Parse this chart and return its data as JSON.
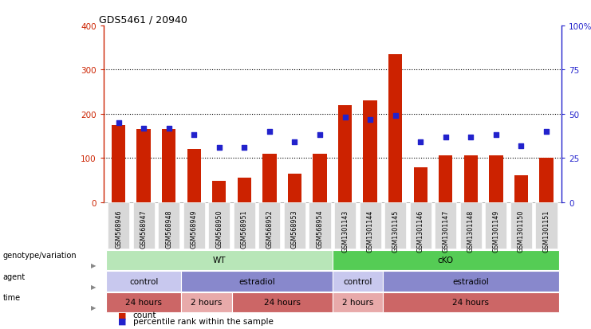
{
  "title": "GDS5461 / 20940",
  "samples": [
    "GSM568946",
    "GSM568947",
    "GSM568948",
    "GSM568949",
    "GSM568950",
    "GSM568951",
    "GSM568952",
    "GSM568953",
    "GSM568954",
    "GSM1301143",
    "GSM1301144",
    "GSM1301145",
    "GSM1301146",
    "GSM1301147",
    "GSM1301148",
    "GSM1301149",
    "GSM1301150",
    "GSM1301151"
  ],
  "counts": [
    175,
    165,
    165,
    120,
    48,
    55,
    110,
    65,
    110,
    220,
    230,
    335,
    78,
    105,
    105,
    105,
    60,
    100
  ],
  "percentile_ranks": [
    45,
    42,
    42,
    38,
    31,
    31,
    40,
    34,
    38,
    48,
    47,
    49,
    34,
    37,
    37,
    38,
    32,
    40
  ],
  "ylim_left": [
    0,
    400
  ],
  "ylim_right": [
    0,
    100
  ],
  "yticks_left": [
    0,
    100,
    200,
    300,
    400
  ],
  "yticks_right": [
    0,
    25,
    50,
    75,
    100
  ],
  "bar_color": "#cc2200",
  "dot_color": "#2222cc",
  "background_color": "#ffffff",
  "axis_color_left": "#cc2200",
  "axis_color_right": "#2222cc",
  "row_labels": [
    "genotype/variation",
    "agent",
    "time"
  ],
  "genotype_groups": [
    {
      "label": "WT",
      "start": 0,
      "end": 9,
      "color": "#b8e6b8"
    },
    {
      "label": "cKO",
      "start": 9,
      "end": 18,
      "color": "#55cc55"
    }
  ],
  "agent_groups": [
    {
      "label": "control",
      "start": 0,
      "end": 3,
      "color": "#c8c8ee"
    },
    {
      "label": "estradiol",
      "start": 3,
      "end": 9,
      "color": "#8888cc"
    },
    {
      "label": "control",
      "start": 9,
      "end": 11,
      "color": "#c8c8ee"
    },
    {
      "label": "estradiol",
      "start": 11,
      "end": 18,
      "color": "#8888cc"
    }
  ],
  "time_groups": [
    {
      "label": "24 hours",
      "start": 0,
      "end": 3,
      "color": "#cc6666"
    },
    {
      "label": "2 hours",
      "start": 3,
      "end": 5,
      "color": "#e8aaaa"
    },
    {
      "label": "24 hours",
      "start": 5,
      "end": 9,
      "color": "#cc6666"
    },
    {
      "label": "2 hours",
      "start": 9,
      "end": 11,
      "color": "#e8aaaa"
    },
    {
      "label": "24 hours",
      "start": 11,
      "end": 18,
      "color": "#cc6666"
    }
  ]
}
